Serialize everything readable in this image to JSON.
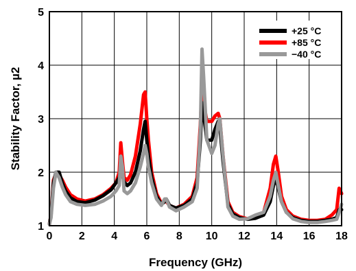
{
  "chart_data": {
    "type": "line",
    "title": "",
    "xlabel": "Frequency (GHz)",
    "ylabel": "Stability Factor, µ2",
    "xlim": [
      0,
      18
    ],
    "ylim": [
      1,
      5
    ],
    "xticks": [
      0,
      2,
      4,
      6,
      8,
      10,
      12,
      14,
      16,
      18
    ],
    "yticks": [
      1,
      2,
      3,
      4,
      5
    ],
    "grid": true,
    "legend_position": "top-right",
    "series": [
      {
        "name": "+25 °C",
        "color": "#000000",
        "x": [
          0,
          0.1,
          0.25,
          0.4,
          0.6,
          0.8,
          1.0,
          1.3,
          1.7,
          2.2,
          2.8,
          3.3,
          3.8,
          4.1,
          4.3,
          4.4,
          4.5,
          4.6,
          4.8,
          5.0,
          5.3,
          5.6,
          5.8,
          5.9,
          6.0,
          6.1,
          6.3,
          6.6,
          6.9,
          7.1,
          7.2,
          7.4,
          7.8,
          8.3,
          8.8,
          9.1,
          9.3,
          9.4,
          9.5,
          9.7,
          10.0,
          10.2,
          10.4,
          10.5,
          10.7,
          11.0,
          11.3,
          11.7,
          12.2,
          12.7,
          13.2,
          13.6,
          13.8,
          13.95,
          14.1,
          14.3,
          14.6,
          15.0,
          15.5,
          16.0,
          16.5,
          17.0,
          17.4,
          17.7,
          17.85,
          18.0
        ],
        "values": [
          1.03,
          1.2,
          1.8,
          2.0,
          2.0,
          1.8,
          1.65,
          1.52,
          1.45,
          1.43,
          1.48,
          1.56,
          1.67,
          1.8,
          1.9,
          2.05,
          1.95,
          1.82,
          1.75,
          1.8,
          2.0,
          2.4,
          2.8,
          2.95,
          2.6,
          2.3,
          1.9,
          1.55,
          1.4,
          1.45,
          1.5,
          1.38,
          1.33,
          1.38,
          1.5,
          1.8,
          2.6,
          3.3,
          3.1,
          2.6,
          2.6,
          2.8,
          2.95,
          2.85,
          2.2,
          1.4,
          1.22,
          1.15,
          1.12,
          1.14,
          1.2,
          1.45,
          1.75,
          1.9,
          1.7,
          1.45,
          1.25,
          1.15,
          1.1,
          1.08,
          1.08,
          1.1,
          1.12,
          1.15,
          1.3,
          1.3
        ]
      },
      {
        "name": "+85 °C",
        "color": "#ff0000",
        "x": [
          0,
          0.1,
          0.25,
          0.4,
          0.6,
          0.8,
          1.0,
          1.3,
          1.7,
          2.2,
          2.8,
          3.3,
          3.8,
          4.1,
          4.3,
          4.4,
          4.5,
          4.6,
          4.8,
          5.0,
          5.3,
          5.6,
          5.8,
          5.9,
          6.0,
          6.1,
          6.3,
          6.6,
          6.9,
          7.1,
          7.2,
          7.4,
          7.8,
          8.3,
          8.8,
          9.1,
          9.3,
          9.4,
          9.5,
          9.7,
          10.0,
          10.2,
          10.4,
          10.5,
          10.7,
          11.0,
          11.3,
          11.7,
          12.2,
          12.7,
          13.2,
          13.6,
          13.8,
          13.95,
          14.1,
          14.3,
          14.6,
          15.0,
          15.5,
          16.0,
          16.5,
          17.0,
          17.4,
          17.7,
          17.85,
          18.0
        ],
        "values": [
          1.03,
          1.2,
          1.85,
          1.97,
          1.95,
          1.85,
          1.72,
          1.58,
          1.5,
          1.46,
          1.5,
          1.58,
          1.7,
          1.8,
          2.0,
          2.55,
          2.2,
          1.9,
          1.85,
          1.95,
          2.3,
          2.9,
          3.45,
          3.5,
          3.0,
          2.6,
          2.0,
          1.6,
          1.42,
          1.45,
          1.45,
          1.38,
          1.33,
          1.4,
          1.55,
          1.9,
          2.9,
          3.6,
          3.3,
          2.95,
          2.95,
          3.05,
          3.1,
          3.0,
          2.3,
          1.45,
          1.25,
          1.17,
          1.13,
          1.16,
          1.25,
          1.7,
          2.15,
          2.3,
          2.0,
          1.55,
          1.3,
          1.18,
          1.12,
          1.1,
          1.1,
          1.12,
          1.2,
          1.3,
          1.7,
          1.6
        ]
      },
      {
        "name": "−40 °C",
        "color": "#999999",
        "x": [
          0,
          0.1,
          0.25,
          0.4,
          0.6,
          0.8,
          1.0,
          1.3,
          1.7,
          2.2,
          2.8,
          3.3,
          3.8,
          4.1,
          4.3,
          4.4,
          4.5,
          4.6,
          4.8,
          5.0,
          5.3,
          5.6,
          5.8,
          5.9,
          6.0,
          6.1,
          6.3,
          6.6,
          6.9,
          7.1,
          7.2,
          7.4,
          7.8,
          8.3,
          8.8,
          9.1,
          9.3,
          9.4,
          9.5,
          9.7,
          10.0,
          10.2,
          10.4,
          10.5,
          10.7,
          11.0,
          11.3,
          11.7,
          12.2,
          12.7,
          13.2,
          13.6,
          13.8,
          13.95,
          14.1,
          14.3,
          14.6,
          15.0,
          15.5,
          16.0,
          16.5,
          17.0,
          17.4,
          17.7,
          17.85,
          18.0
        ],
        "values": [
          1.03,
          1.15,
          1.7,
          2.0,
          1.9,
          1.72,
          1.58,
          1.45,
          1.4,
          1.38,
          1.4,
          1.46,
          1.55,
          1.65,
          1.75,
          2.3,
          2.1,
          1.65,
          1.6,
          1.65,
          1.8,
          2.1,
          2.35,
          2.5,
          2.35,
          2.1,
          1.8,
          1.5,
          1.38,
          1.5,
          1.5,
          1.35,
          1.28,
          1.35,
          1.45,
          1.7,
          2.8,
          4.3,
          3.8,
          2.6,
          2.35,
          2.5,
          2.9,
          3.0,
          2.3,
          1.35,
          1.18,
          1.12,
          1.13,
          1.2,
          1.25,
          1.55,
          1.85,
          2.0,
          1.75,
          1.45,
          1.25,
          1.13,
          1.08,
          1.06,
          1.06,
          1.08,
          1.1,
          1.12,
          1.25,
          1.4
        ]
      }
    ]
  }
}
